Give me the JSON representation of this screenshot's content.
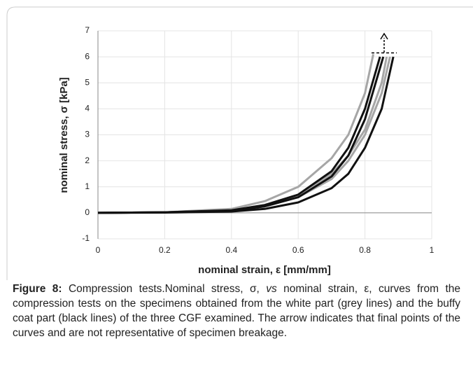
{
  "chart_data": {
    "type": "line",
    "xlabel": "nominal strain, ε [mm/mm]",
    "ylabel": "nominal stress, σ [kPa]",
    "xlim": [
      0,
      1
    ],
    "xticks": [
      0,
      0.2,
      0.4,
      0.6,
      0.8,
      1
    ],
    "ylim": [
      -1,
      7
    ],
    "yticks": [
      -1,
      0,
      1,
      2,
      3,
      4,
      5,
      6,
      7
    ],
    "grid": true,
    "series": [
      {
        "color": "#a6a6a6",
        "x": [
          0,
          0.2,
          0.4,
          0.5,
          0.6,
          0.7,
          0.75,
          0.8,
          0.825
        ],
        "values": [
          0,
          0.02,
          0.15,
          0.45,
          1.0,
          2.1,
          3.0,
          4.6,
          6.1
        ]
      },
      {
        "color": "#a6a6a6",
        "x": [
          0,
          0.2,
          0.4,
          0.5,
          0.6,
          0.7,
          0.75,
          0.8,
          0.85,
          0.865
        ],
        "values": [
          0,
          0.02,
          0.1,
          0.3,
          0.7,
          1.5,
          2.2,
          3.2,
          5.0,
          6.0
        ]
      },
      {
        "color": "#a6a6a6",
        "x": [
          0,
          0.2,
          0.4,
          0.5,
          0.6,
          0.7,
          0.75,
          0.8,
          0.85,
          0.875
        ],
        "values": [
          0,
          0.02,
          0.08,
          0.25,
          0.6,
          1.3,
          2.0,
          3.0,
          4.6,
          6.0
        ]
      },
      {
        "color": "#111111",
        "x": [
          0,
          0.2,
          0.4,
          0.5,
          0.6,
          0.7,
          0.75,
          0.8,
          0.845
        ],
        "values": [
          0,
          0.02,
          0.1,
          0.3,
          0.7,
          1.6,
          2.5,
          4.0,
          6.0
        ]
      },
      {
        "color": "#111111",
        "x": [
          0,
          0.2,
          0.4,
          0.5,
          0.6,
          0.7,
          0.75,
          0.8,
          0.855
        ],
        "values": [
          0,
          0.02,
          0.08,
          0.25,
          0.6,
          1.4,
          2.2,
          3.6,
          6.0
        ]
      },
      {
        "color": "#111111",
        "x": [
          0,
          0.2,
          0.4,
          0.5,
          0.6,
          0.7,
          0.75,
          0.8,
          0.85,
          0.885
        ],
        "values": [
          0,
          0.01,
          0.05,
          0.15,
          0.4,
          0.95,
          1.5,
          2.5,
          4.0,
          6.0
        ]
      }
    ]
  },
  "caption": {
    "label": "Figure 8:",
    "text_1": " Compression tests.Nominal stress, σ, ",
    "text_vs": "vs",
    "text_2": " nominal strain, ε, curves from the compression tests on the specimens obtained from the white part (grey lines) and the buffy coat part (black lines) of the three CGF examined. The arrow indicates that final points of the curves and are not representative of specimen breakage."
  }
}
